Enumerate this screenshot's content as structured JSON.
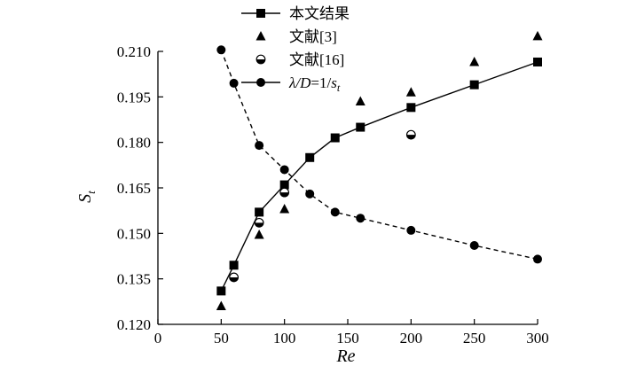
{
  "chart_data": {
    "type": "scatter",
    "xlabel": "Re",
    "ylabel_main": "S",
    "ylabel_sub": "t",
    "xlim": [
      0,
      300
    ],
    "ylim": [
      0.12,
      0.21
    ],
    "x_ticks": [
      "0",
      "50",
      "100",
      "150",
      "200",
      "250",
      "300"
    ],
    "y_ticks": [
      "0.120",
      "0.135",
      "0.150",
      "0.165",
      "0.180",
      "0.195",
      "0.210"
    ],
    "grid": false,
    "legend_position": "top-center",
    "series": [
      {
        "name": "本文结果",
        "marker": "square",
        "line": "solid",
        "x": [
          50,
          60,
          80,
          100,
          120,
          140,
          160,
          200,
          250,
          300
        ],
        "y": [
          0.131,
          0.1395,
          0.157,
          0.166,
          0.175,
          0.1815,
          0.185,
          0.1915,
          0.199,
          0.2065
        ]
      },
      {
        "name": "文献[3]",
        "marker": "triangle",
        "line": "none",
        "x": [
          50,
          80,
          100,
          160,
          200,
          250,
          300
        ],
        "y": [
          0.126,
          0.1495,
          0.158,
          0.1935,
          0.1965,
          0.2065,
          0.215
        ]
      },
      {
        "name": "文献[16]",
        "marker": "half-circle",
        "line": "none",
        "x": [
          60,
          80,
          100,
          200
        ],
        "y": [
          0.1355,
          0.1535,
          0.1635,
          0.1825
        ]
      },
      {
        "name_main": "λ/D",
        "name_eq": "=1/",
        "name_s": "s",
        "name_sub": "t",
        "marker": "circle",
        "line": "dashed",
        "x": [
          50,
          60,
          80,
          100,
          120,
          140,
          160,
          200,
          250,
          300
        ],
        "y": [
          0.2105,
          0.1995,
          0.179,
          0.171,
          0.163,
          0.157,
          0.155,
          0.151,
          0.146,
          0.1415
        ]
      }
    ]
  }
}
